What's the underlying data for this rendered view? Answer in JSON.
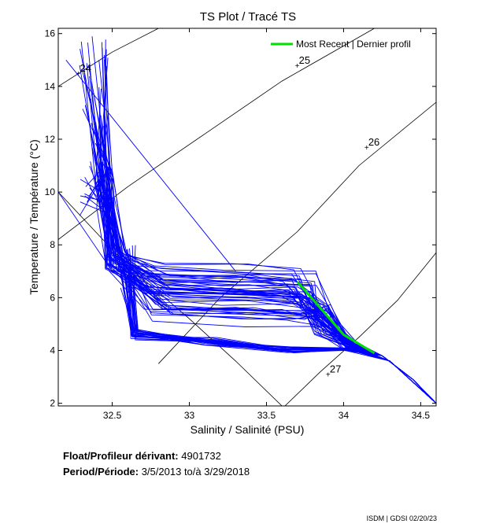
{
  "chart_data": {
    "type": "line",
    "title": "TS Plot / Tracé TS",
    "xlabel": "Salinity / Salinité (PSU)",
    "ylabel": "Temperature / Température (°C)",
    "xlim": [
      32.15,
      34.6
    ],
    "ylim": [
      1.9,
      16.2
    ],
    "x_ticks": [
      "32.5",
      "33",
      "33.5",
      "34",
      "34.5"
    ],
    "x_tick_values": [
      32.5,
      33.0,
      33.5,
      34.0,
      34.5
    ],
    "y_ticks": [
      "2",
      "4",
      "6",
      "8",
      "10",
      "12",
      "14",
      "16"
    ],
    "y_tick_values": [
      2,
      4,
      6,
      8,
      10,
      12,
      14,
      16
    ],
    "grid": false,
    "legend": {
      "placement": "top-right",
      "entries": [
        {
          "label": "Most Recent | Dernier profil",
          "color": "#00e000"
        }
      ]
    },
    "density_contours": [
      {
        "label": "24",
        "points": [
          [
            32.15,
            14.0
          ],
          [
            32.5,
            15.3
          ],
          [
            32.8,
            16.2
          ]
        ],
        "label_at": [
          32.28,
          14.5
        ]
      },
      {
        "label": "25",
        "points": [
          [
            32.15,
            8.2
          ],
          [
            32.6,
            10.2
          ],
          [
            33.1,
            12.2
          ],
          [
            33.6,
            14.2
          ],
          [
            34.2,
            16.2
          ]
        ],
        "label_at": [
          33.7,
          14.8
        ]
      },
      {
        "label": "26",
        "points": [
          [
            32.8,
            3.5
          ],
          [
            33.2,
            6.0
          ],
          [
            33.7,
            8.5
          ],
          [
            34.1,
            11.0
          ],
          [
            34.6,
            13.4
          ]
        ],
        "label_at": [
          34.15,
          11.7
        ]
      },
      {
        "label": "27",
        "points": [
          [
            33.62,
            1.9
          ],
          [
            33.85,
            3.2
          ],
          [
            34.1,
            4.5
          ],
          [
            34.35,
            5.9
          ],
          [
            34.6,
            7.7
          ]
        ],
        "label_at": [
          33.9,
          3.1
        ]
      },
      {
        "label": "",
        "points": [
          [
            32.15,
            10.0
          ],
          [
            32.6,
            7.2
          ],
          [
            33.0,
            5.2
          ],
          [
            33.3,
            3.6
          ],
          [
            33.6,
            1.9
          ]
        ],
        "label_at": null
      }
    ],
    "series": [
      {
        "name": "Most Recent | Dernier profil",
        "color": "#00e000",
        "points": [
          [
            33.7,
            6.6
          ],
          [
            33.85,
            5.6
          ],
          [
            34.0,
            4.6
          ],
          [
            34.2,
            3.9
          ]
        ]
      }
    ],
    "profiles": {
      "color": "#0000ff",
      "count": 60,
      "envelope": [
        [
          32.3,
          16.0
        ],
        [
          32.4,
          12.0
        ],
        [
          32.5,
          8.0
        ],
        [
          32.6,
          5.5
        ],
        [
          32.6,
          4.5
        ],
        [
          33.0,
          4.0
        ],
        [
          33.5,
          3.8
        ],
        [
          34.0,
          3.9
        ],
        [
          34.3,
          3.4
        ],
        [
          34.6,
          2.0
        ]
      ],
      "outlier_line": [
        [
          32.2,
          15.0
        ],
        [
          33.3,
          7.0
        ]
      ],
      "outlier_line2": [
        [
          32.15,
          10.0
        ],
        [
          32.5,
          7.0
        ]
      ]
    }
  },
  "meta": {
    "float_label": "Float/Profileur dérivant:",
    "float_value": "4901732",
    "period_label": "Period/Période:",
    "period_from": "3/5/2013",
    "period_to_label": "to/à",
    "period_to": "3/29/2018"
  },
  "footer": "ISDM | GDSI 02/20/23"
}
